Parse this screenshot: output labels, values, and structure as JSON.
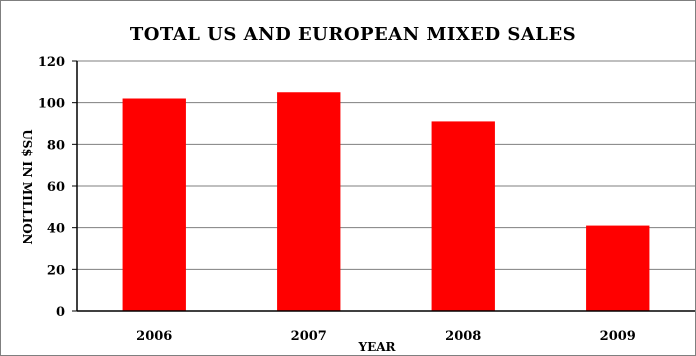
{
  "chart_data": {
    "type": "bar",
    "title": "TOTAL US AND EUROPEAN MIXED SALES",
    "xlabel": "YEAR",
    "ylabel": "US$ IN MILLION",
    "categories": [
      "2006",
      "2007",
      "2008",
      "2009"
    ],
    "values": [
      102,
      105,
      91,
      41
    ],
    "ylim": [
      0,
      120
    ],
    "yticks": [
      0,
      20,
      40,
      60,
      80,
      100,
      120
    ],
    "grid": true,
    "legend": "none",
    "bar_color": "#ff0000",
    "grid_color": "#7f7f7f",
    "axis_color": "#000000"
  }
}
